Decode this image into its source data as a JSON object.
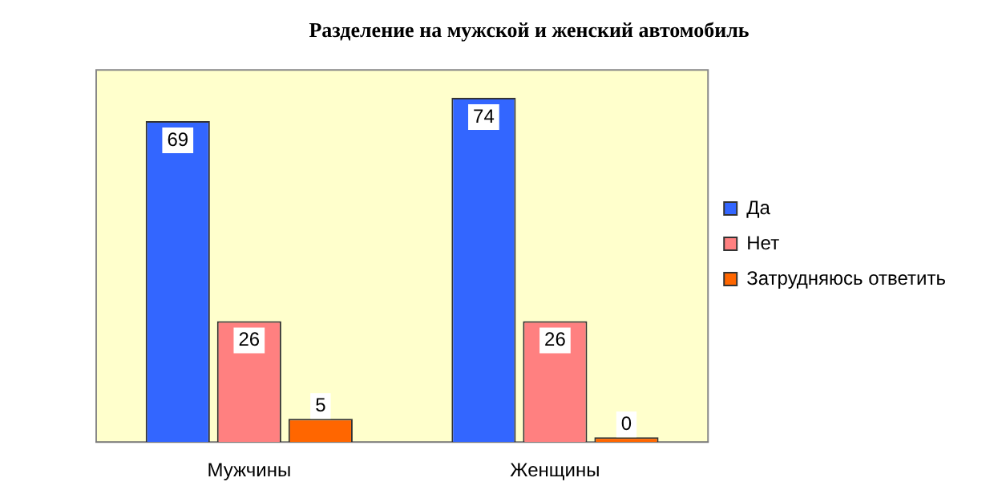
{
  "chart_data": {
    "type": "bar",
    "title": "Разделение на мужской и женский автомобиль",
    "categories": [
      "Мужчины",
      "Женщины"
    ],
    "series": [
      {
        "name": "Да",
        "color": "#3366ff",
        "values": [
          69,
          74
        ]
      },
      {
        "name": "Нет",
        "color": "#ff8080",
        "values": [
          26,
          26
        ]
      },
      {
        "name": "Затрудняюсь ответить",
        "color": "#ff6600",
        "values": [
          5,
          0
        ]
      }
    ],
    "data_labels": true,
    "grid": false,
    "legend": "right"
  }
}
